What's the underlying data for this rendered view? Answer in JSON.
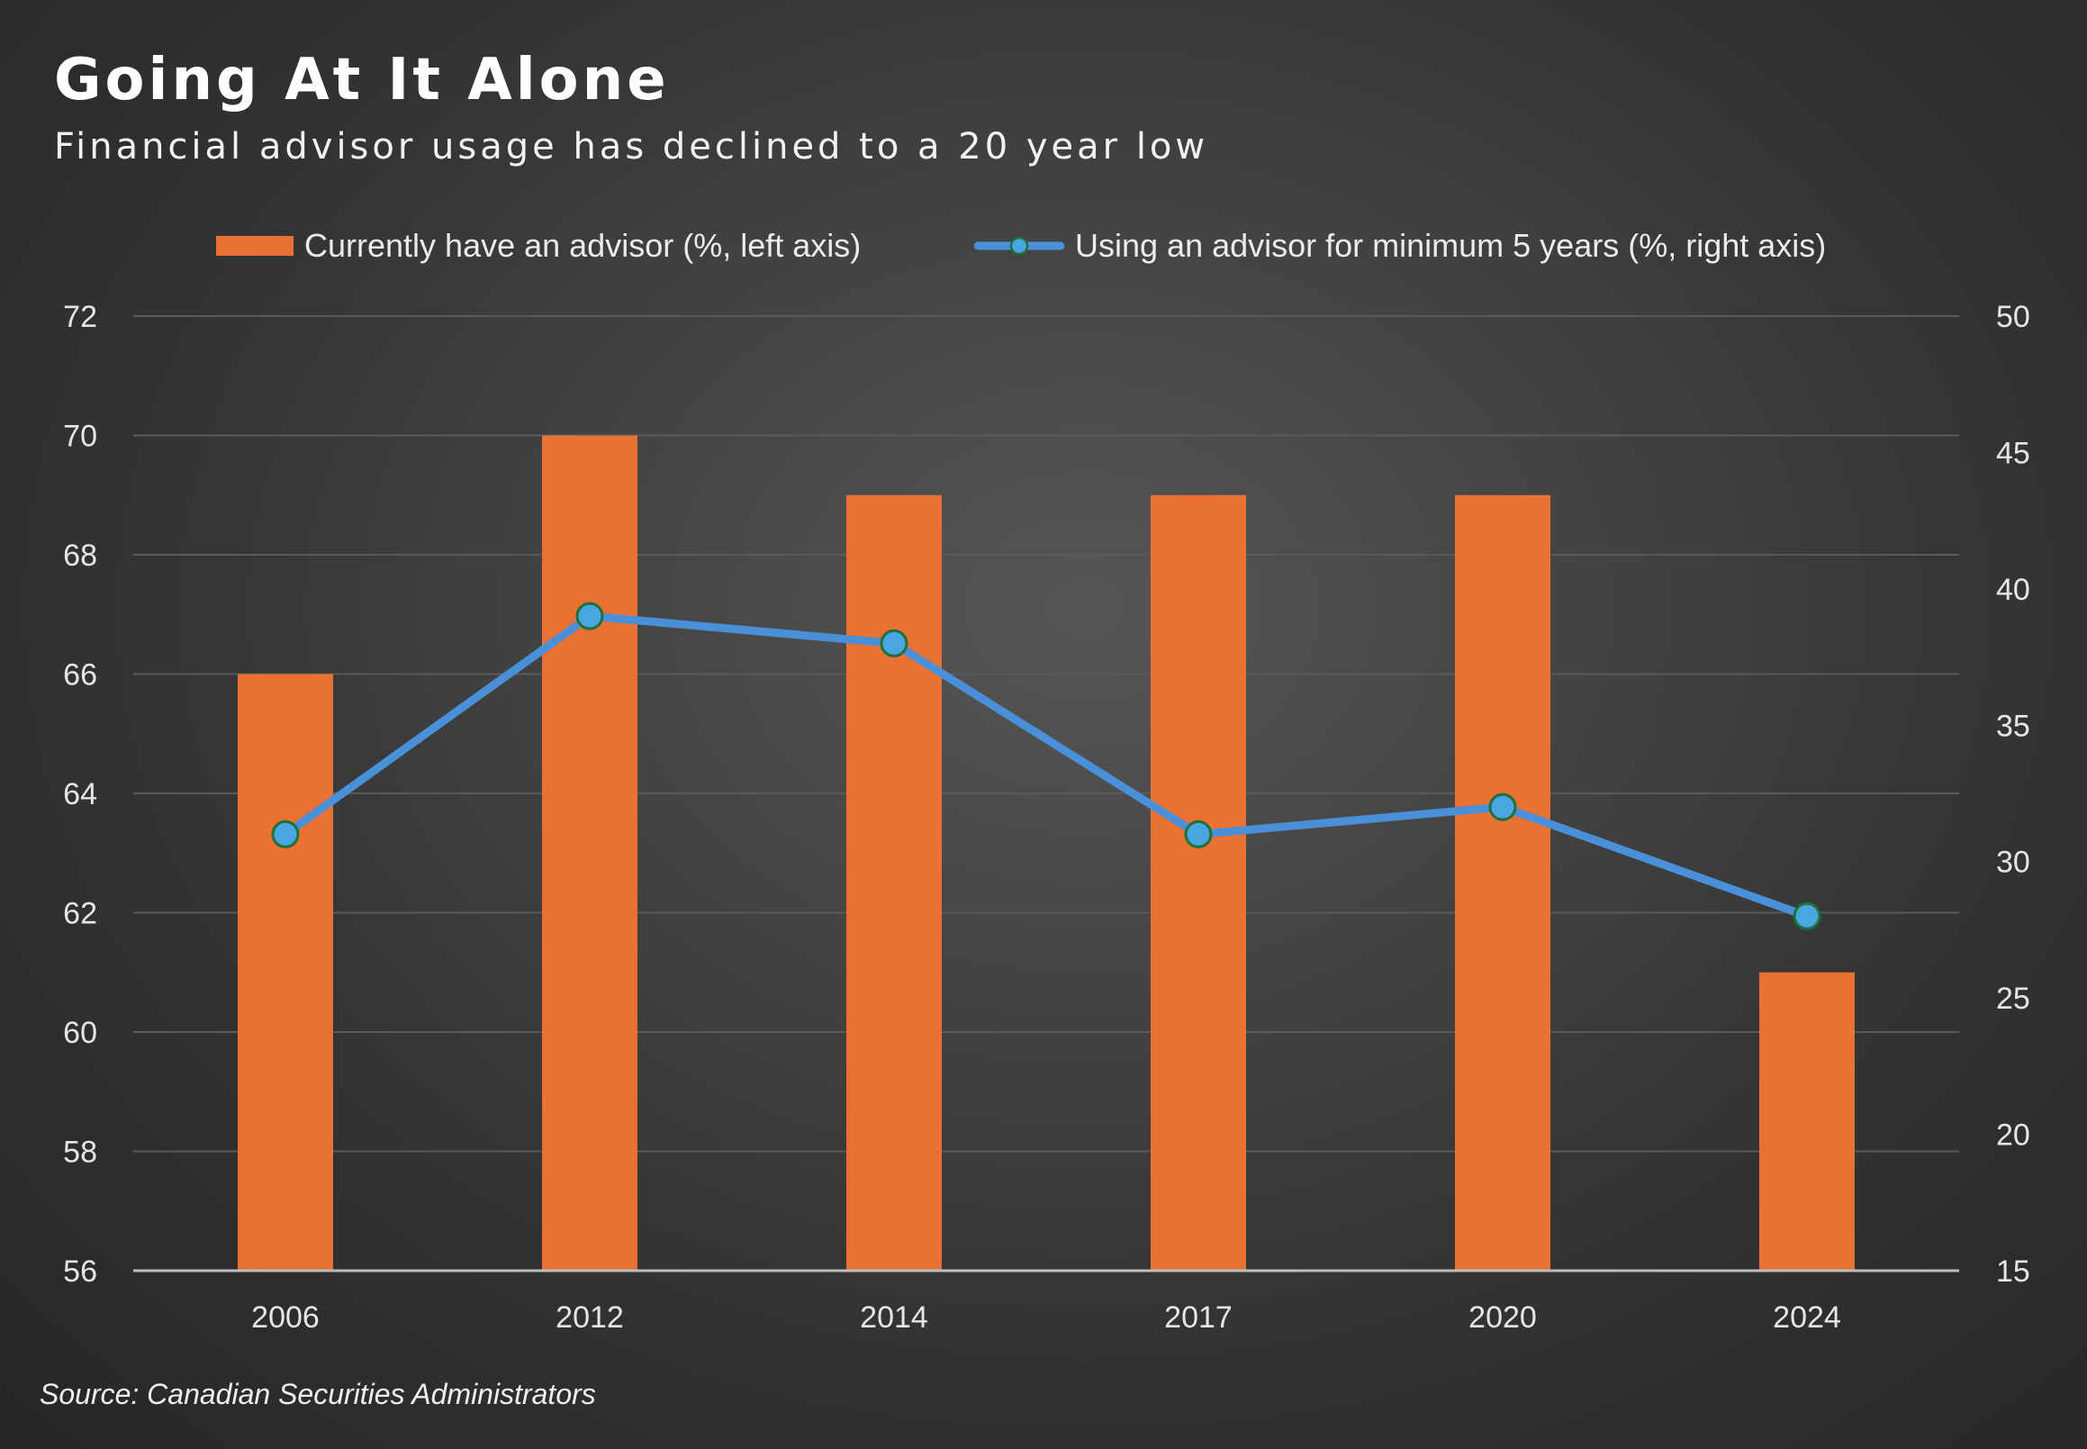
{
  "header": {
    "title": "Going At It Alone",
    "subtitle": "Financial advisor usage has declined to a 20 year low"
  },
  "source": "Source: Canadian Securities Administrators",
  "colors": {
    "bar": "#e97132",
    "line": "#4a90d9",
    "marker_fill": "#4aa6e0",
    "marker_stroke": "#1f6f3a",
    "grid": "#5a5a5a",
    "axis_text": "#e6e6e6",
    "baseline": "#bdbdbd"
  },
  "chart_data": {
    "type": "bar",
    "categories": [
      "2006",
      "2012",
      "2014",
      "2017",
      "2020",
      "2024"
    ],
    "series": [
      {
        "name": "Currently have an advisor (%, left axis)",
        "type": "bar",
        "axis": "left",
        "values": [
          66,
          70,
          69,
          69,
          69,
          61
        ]
      },
      {
        "name": "Using an advisor for minimum 5 years (%, right axis)",
        "type": "line",
        "axis": "right",
        "values": [
          31,
          39,
          38,
          31,
          32,
          28
        ]
      }
    ],
    "left_axis": {
      "ylim": [
        56,
        72
      ],
      "ticks": [
        "56",
        "58",
        "60",
        "62",
        "64",
        "66",
        "68",
        "70",
        "72"
      ]
    },
    "right_axis": {
      "ylim": [
        15,
        50
      ],
      "ticks": [
        "15",
        "20",
        "25",
        "30",
        "35",
        "40",
        "45",
        "50"
      ]
    },
    "grid": true,
    "legend": "top-center"
  }
}
